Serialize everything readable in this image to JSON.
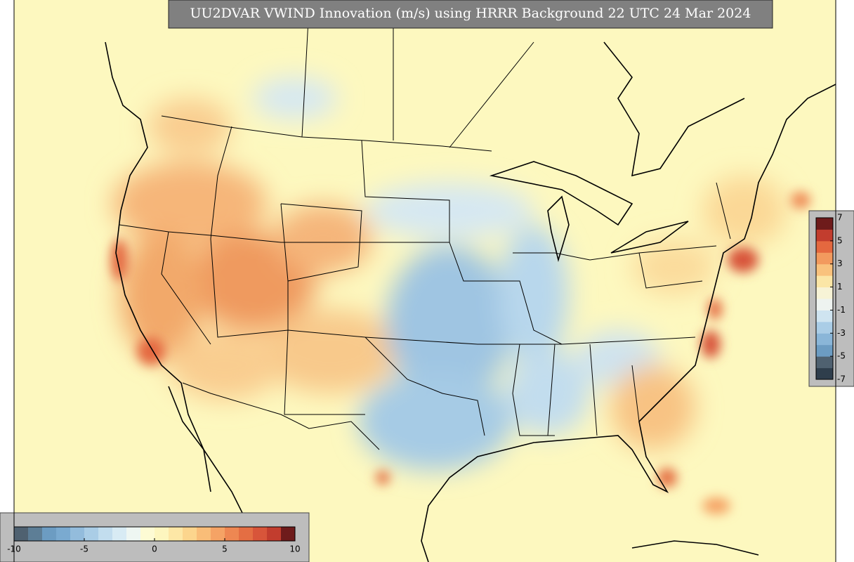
{
  "title": "UU2DVAR VWIND Innovation (m/s) using HRRR Background 22 UTC 24 Mar 2024",
  "horizontal_colorbar": {
    "lim": [
      -10,
      10
    ],
    "ticks": [
      -10,
      -5,
      0,
      5,
      10
    ],
    "colors": [
      "#4f6170",
      "#5d7e96",
      "#6c9cc2",
      "#7aaad0",
      "#93bcdc",
      "#aacde6",
      "#c2ddee",
      "#d8ebf4",
      "#eef6f2",
      "#fdfbd4",
      "#fdf6bf",
      "#fde7a6",
      "#fcd58d",
      "#f9bd78",
      "#f5a365",
      "#ee8752",
      "#e46e43",
      "#d8553a",
      "#c23d2e",
      "#6e1b1b"
    ]
  },
  "vertical_colorbar": {
    "lim": [
      -7,
      7
    ],
    "ticks": [
      7,
      5,
      3,
      1,
      -1,
      -3,
      -5,
      -7
    ],
    "colors": [
      "#2f3e4c",
      "#4f6170",
      "#6c9cc2",
      "#8ab6d8",
      "#aacde6",
      "#cfe4f0",
      "#eef3f0",
      "#f7f3d6",
      "#fbe6a6",
      "#f9c27d",
      "#f29a5e",
      "#e4683f",
      "#c23d2e",
      "#6e1b1b"
    ]
  }
}
